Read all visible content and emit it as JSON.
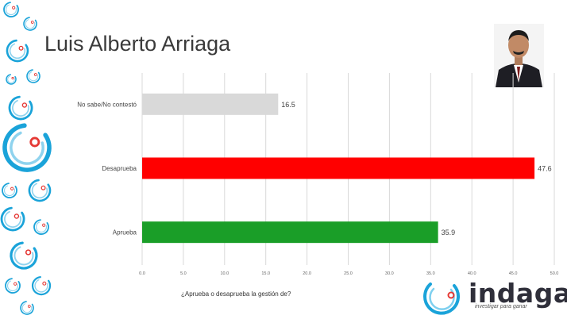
{
  "title": "Luis Alberto Arriaga",
  "caption": "¿Aprueba o desaprueba la gestión de?",
  "brand": {
    "name": "indaga",
    "tagline": "investigar para ganar"
  },
  "colors": {
    "brand_ring": "#1aa3d9",
    "brand_dot": "#e53935",
    "grid": "#d9d9d9"
  },
  "chart_data": {
    "type": "bar",
    "orientation": "horizontal",
    "categories": [
      "No sabe/No contestó",
      "Desaprueba",
      "Aprueba"
    ],
    "values": [
      16.5,
      47.6,
      35.9
    ],
    "value_labels": [
      "16.5",
      "47.6",
      "35.9"
    ],
    "colors": [
      "#d9d9d9",
      "#ff0000",
      "#1a9e28"
    ],
    "xlim": [
      0,
      50
    ],
    "xticks": [
      "0.0",
      "5.0",
      "10.0",
      "15.0",
      "20.0",
      "25.0",
      "30.0",
      "35.0",
      "40.0",
      "45.0",
      "50.0"
    ],
    "grid": true,
    "legend": "none"
  }
}
